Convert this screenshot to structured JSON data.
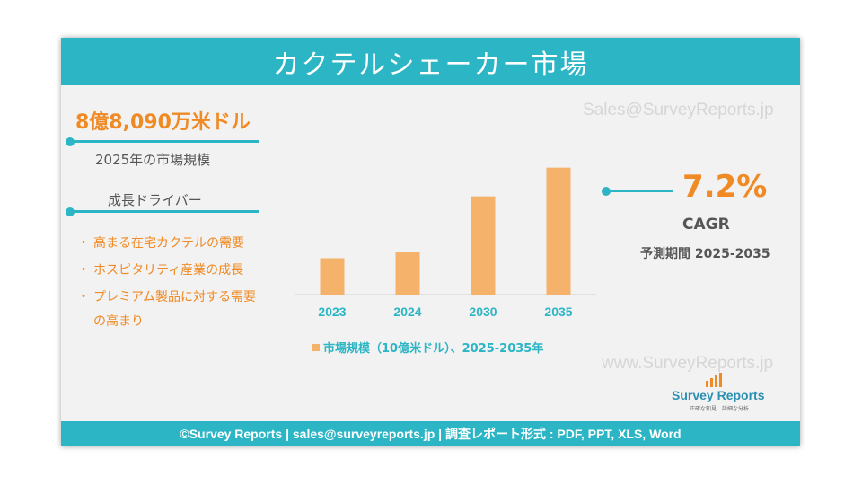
{
  "header": {
    "title": "カクテルシェーカー市場"
  },
  "watermarks": {
    "email": "Sales@SurveyReports.jp",
    "url": "www.SurveyReports.jp"
  },
  "left_panel": {
    "market_value": "8億8,090万米ドル",
    "market_value_caption": "2025年の市場規模",
    "drivers_heading": "成長ドライバー",
    "drivers": [
      "高まる在宅カクテルの需要",
      "ホスピタリティ産業の成長",
      "プレミアム製品に対する需要の高まり"
    ],
    "bullet_glyph": "・"
  },
  "right_panel": {
    "cagr_value": "7.2%",
    "cagr_label": "CAGR",
    "forecast_period": "予測期間 2025-2035"
  },
  "logo": {
    "name": "Survey Reports",
    "tagline": "正確な知見、詳細な分析"
  },
  "footer": {
    "text": "©Survey Reports | sales@surveyreports.jp |  調査レポート形式 : PDF, PPT, XLS, Word"
  },
  "colors": {
    "accent": "#2bb5c5",
    "orange": "#f08a24",
    "bar": "#f5b26b"
  },
  "chart_data": {
    "type": "bar",
    "categories": [
      "2023",
      "2024",
      "2030",
      "2035"
    ],
    "values": [
      0.76,
      0.88,
      2.05,
      2.65
    ],
    "ylim": [
      0,
      3
    ],
    "grid": false,
    "legend": "bottom",
    "series": [
      {
        "name": "市場規模（10億米ドル）、2025-2035年",
        "values": [
          0.76,
          0.88,
          2.05,
          2.65
        ]
      }
    ]
  }
}
